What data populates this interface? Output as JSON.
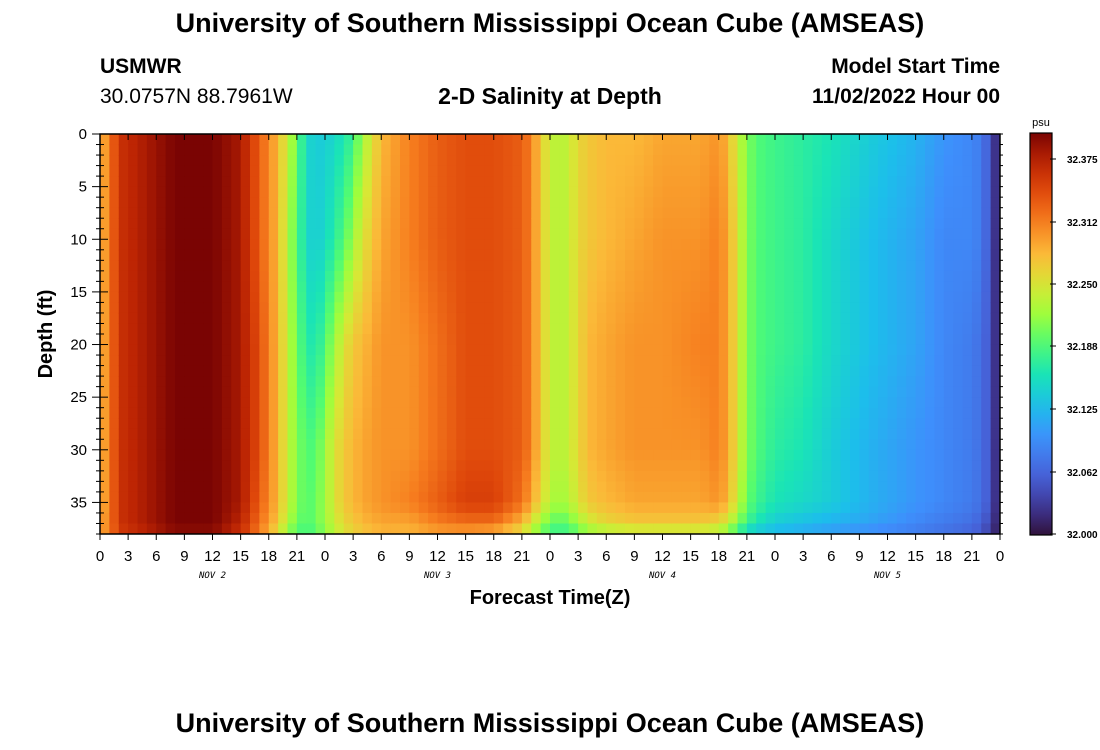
{
  "header": {
    "title": "University of Southern Mississippi Ocean Cube (AMSEAS)",
    "station_name": "USMWR",
    "station_coords": "30.0757N  88.7961W",
    "chart_title": "2-D Salinity at Depth",
    "model_start_label": "Model Start Time",
    "model_start_value": "11/02/2022 Hour 00"
  },
  "footer": {
    "title": "University of Southern Mississippi Ocean Cube (AMSEAS)"
  },
  "chart_data": {
    "type": "heatmap",
    "title": "2-D Salinity at Depth",
    "xlabel": "Forecast Time(Z)",
    "ylabel": "Depth (ft)",
    "x_range_hours": [
      0,
      96
    ],
    "ylim": [
      0,
      38
    ],
    "y_reversed": true,
    "y_ticks": [
      0,
      5,
      10,
      15,
      20,
      25,
      30,
      35
    ],
    "x_tick_labels": [
      "0",
      "3",
      "6",
      "9",
      "12",
      "15",
      "18",
      "21",
      "0",
      "3",
      "6",
      "9",
      "12",
      "15",
      "18",
      "21",
      "0",
      "3",
      "6",
      "9",
      "12",
      "15",
      "18",
      "21",
      "0",
      "3",
      "6",
      "9",
      "12",
      "15",
      "18",
      "21",
      "0"
    ],
    "day_labels": [
      "NOV 2",
      "NOV 3",
      "NOV 4",
      "NOV 5"
    ],
    "colorbar": {
      "unit": "psu",
      "range": [
        32.0,
        32.4
      ],
      "ticks": [
        "32.375",
        "32.312",
        "32.250",
        "32.188",
        "32.125",
        "32.062",
        "32.000"
      ],
      "tick_values": [
        32.375,
        32.312,
        32.25,
        32.188,
        32.125,
        32.062,
        32.0
      ]
    },
    "profile_hours": [
      0,
      1,
      2,
      5,
      8,
      12,
      15,
      17,
      19,
      20,
      21,
      22,
      23,
      24,
      25,
      26,
      27,
      28,
      30,
      33,
      36,
      39,
      42,
      45,
      46,
      47,
      48,
      49,
      50,
      51,
      52,
      54,
      57,
      60,
      64,
      66,
      67,
      68,
      69,
      70,
      72,
      75,
      78,
      82,
      87,
      90,
      93,
      94,
      95,
      96
    ],
    "profile_depths": [
      0,
      10,
      20,
      30,
      35,
      37,
      38
    ],
    "salinity": [
      [
        32.28,
        32.28,
        32.28,
        32.28,
        32.28,
        32.29,
        32.29
      ],
      [
        32.31,
        32.31,
        32.31,
        32.31,
        32.31,
        32.31,
        32.31
      ],
      [
        32.36,
        32.36,
        32.36,
        32.36,
        32.36,
        32.36,
        32.35
      ],
      [
        32.38,
        32.38,
        32.38,
        32.38,
        32.38,
        32.38,
        32.37
      ],
      [
        32.4,
        32.4,
        32.4,
        32.4,
        32.4,
        32.4,
        32.39
      ],
      [
        32.4,
        32.4,
        32.4,
        32.4,
        32.4,
        32.4,
        32.39
      ],
      [
        32.38,
        32.38,
        32.38,
        32.38,
        32.38,
        32.37,
        32.36
      ],
      [
        32.33,
        32.33,
        32.34,
        32.34,
        32.33,
        32.32,
        32.31
      ],
      [
        32.28,
        32.28,
        32.28,
        32.28,
        32.28,
        32.27,
        32.25
      ],
      [
        32.24,
        32.23,
        32.24,
        32.24,
        32.24,
        32.23,
        32.21
      ],
      [
        32.2,
        32.19,
        32.2,
        32.21,
        32.21,
        32.2,
        32.19
      ],
      [
        32.15,
        32.15,
        32.17,
        32.19,
        32.19,
        32.19,
        32.18
      ],
      [
        32.14,
        32.14,
        32.16,
        32.19,
        32.2,
        32.2,
        32.19
      ],
      [
        32.14,
        32.15,
        32.19,
        32.22,
        32.22,
        32.22,
        32.21
      ],
      [
        32.15,
        32.17,
        32.22,
        32.25,
        32.25,
        32.24,
        32.23
      ],
      [
        32.16,
        32.19,
        32.25,
        32.27,
        32.27,
        32.26,
        32.25
      ],
      [
        32.18,
        32.22,
        32.27,
        32.28,
        32.28,
        32.27,
        32.26
      ],
      [
        32.22,
        32.25,
        32.28,
        32.29,
        32.29,
        32.28,
        32.27
      ],
      [
        32.28,
        32.29,
        32.3,
        32.3,
        32.3,
        32.29,
        32.28
      ],
      [
        32.31,
        32.31,
        32.3,
        32.3,
        32.31,
        32.29,
        32.28
      ],
      [
        32.33,
        32.33,
        32.32,
        32.32,
        32.33,
        32.31,
        32.29
      ],
      [
        32.34,
        32.34,
        32.34,
        32.34,
        32.35,
        32.32,
        32.29
      ],
      [
        32.34,
        32.34,
        32.34,
        32.34,
        32.35,
        32.32,
        32.28
      ],
      [
        32.33,
        32.33,
        32.33,
        32.33,
        32.32,
        32.28,
        32.25
      ],
      [
        32.31,
        32.31,
        32.31,
        32.31,
        32.29,
        32.25,
        32.22
      ],
      [
        32.27,
        32.27,
        32.27,
        32.27,
        32.26,
        32.22,
        32.2
      ],
      [
        32.24,
        32.24,
        32.24,
        32.24,
        32.23,
        32.2,
        32.18
      ],
      [
        32.23,
        32.23,
        32.23,
        32.23,
        32.22,
        32.19,
        32.17
      ],
      [
        32.24,
        32.24,
        32.24,
        32.24,
        32.23,
        32.2,
        32.18
      ],
      [
        32.26,
        32.26,
        32.26,
        32.26,
        32.25,
        32.22,
        32.19
      ],
      [
        32.27,
        32.27,
        32.28,
        32.28,
        32.27,
        32.24,
        32.21
      ],
      [
        32.28,
        32.28,
        32.29,
        32.29,
        32.28,
        32.26,
        32.22
      ],
      [
        32.28,
        32.29,
        32.3,
        32.3,
        32.29,
        32.27,
        32.23
      ],
      [
        32.29,
        32.3,
        32.3,
        32.3,
        32.29,
        32.27,
        32.23
      ],
      [
        32.29,
        32.3,
        32.31,
        32.3,
        32.29,
        32.27,
        32.23
      ],
      [
        32.3,
        32.31,
        32.31,
        32.31,
        32.3,
        32.26,
        32.22
      ],
      [
        32.28,
        32.29,
        32.29,
        32.29,
        32.28,
        32.24,
        32.2
      ],
      [
        32.24,
        32.25,
        32.25,
        32.25,
        32.24,
        32.21,
        32.17
      ],
      [
        32.21,
        32.21,
        32.21,
        32.21,
        32.2,
        32.18,
        32.14
      ],
      [
        32.19,
        32.19,
        32.19,
        32.19,
        32.18,
        32.16,
        32.13
      ],
      [
        32.18,
        32.18,
        32.18,
        32.17,
        32.16,
        32.14,
        32.12
      ],
      [
        32.17,
        32.17,
        32.17,
        32.16,
        32.15,
        32.13,
        32.11
      ],
      [
        32.16,
        32.15,
        32.15,
        32.14,
        32.14,
        32.12,
        32.1
      ],
      [
        32.14,
        32.13,
        32.13,
        32.12,
        32.12,
        32.11,
        32.09
      ],
      [
        32.12,
        32.11,
        32.11,
        32.1,
        32.1,
        32.09,
        32.08
      ],
      [
        32.1,
        32.09,
        32.09,
        32.09,
        32.09,
        32.08,
        32.07
      ],
      [
        32.09,
        32.09,
        32.08,
        32.08,
        32.08,
        32.07,
        32.06
      ],
      [
        32.08,
        32.08,
        32.07,
        32.07,
        32.07,
        32.06,
        32.05
      ],
      [
        32.05,
        32.05,
        32.05,
        32.05,
        32.05,
        32.04,
        32.03
      ],
      [
        32.0,
        32.0,
        32.0,
        32.0,
        32.0,
        32.0,
        32.0
      ]
    ]
  }
}
